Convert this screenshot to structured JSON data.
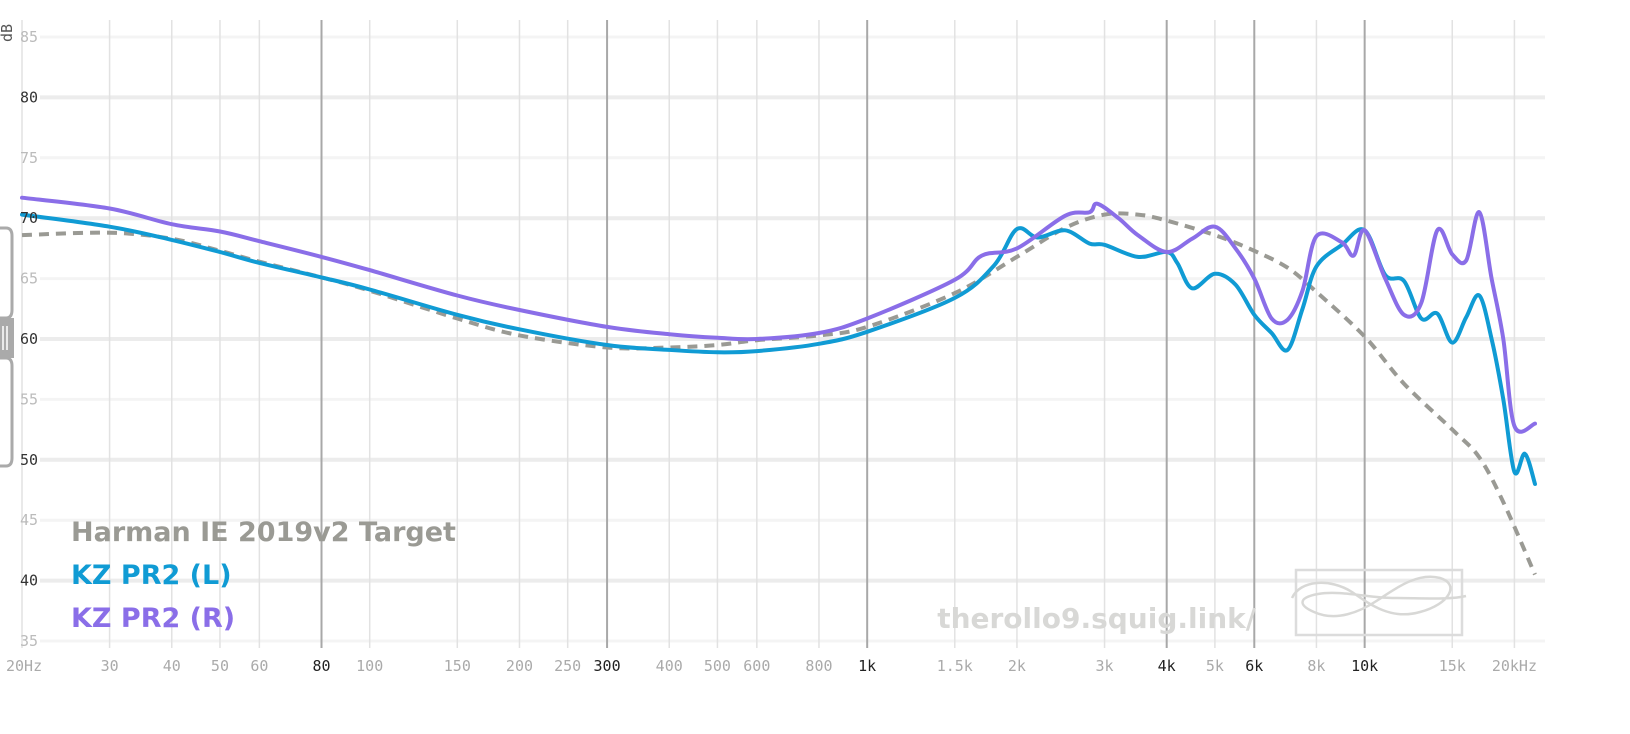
{
  "chart_data": {
    "type": "line",
    "title": "",
    "ylabel": "dB",
    "x_scale": "log",
    "xlim": [
      20,
      22000
    ],
    "ylim": [
      35,
      85
    ],
    "y_ticks": [
      {
        "value": 85,
        "label": "85",
        "major": false
      },
      {
        "value": 80,
        "label": "80",
        "major": true
      },
      {
        "value": 75,
        "label": "75",
        "major": false
      },
      {
        "value": 70,
        "label": "70",
        "major": true
      },
      {
        "value": 65,
        "label": "65",
        "major": false
      },
      {
        "value": 60,
        "label": "60",
        "major": true
      },
      {
        "value": 55,
        "label": "55",
        "major": false
      },
      {
        "value": 50,
        "label": "50",
        "major": true
      },
      {
        "value": 45,
        "label": "45",
        "major": false
      },
      {
        "value": 40,
        "label": "40",
        "major": true
      },
      {
        "value": 35,
        "label": "35",
        "major": false
      }
    ],
    "x_ticks": [
      {
        "value": 20,
        "label": "20Hz",
        "major": false
      },
      {
        "value": 30,
        "label": "30",
        "major": false
      },
      {
        "value": 40,
        "label": "40",
        "major": false
      },
      {
        "value": 50,
        "label": "50",
        "major": false
      },
      {
        "value": 60,
        "label": "60",
        "major": false
      },
      {
        "value": 80,
        "label": "80",
        "major": true
      },
      {
        "value": 100,
        "label": "100",
        "major": false
      },
      {
        "value": 150,
        "label": "150",
        "major": false
      },
      {
        "value": 200,
        "label": "200",
        "major": false
      },
      {
        "value": 250,
        "label": "250",
        "major": false
      },
      {
        "value": 300,
        "label": "300",
        "major": true
      },
      {
        "value": 400,
        "label": "400",
        "major": false
      },
      {
        "value": 500,
        "label": "500",
        "major": false
      },
      {
        "value": 600,
        "label": "600",
        "major": false
      },
      {
        "value": 800,
        "label": "800",
        "major": false
      },
      {
        "value": 1000,
        "label": "1k",
        "major": true
      },
      {
        "value": 1500,
        "label": "1.5k",
        "major": false
      },
      {
        "value": 2000,
        "label": "2k",
        "major": false
      },
      {
        "value": 3000,
        "label": "3k",
        "major": false
      },
      {
        "value": 4000,
        "label": "4k",
        "major": true
      },
      {
        "value": 5000,
        "label": "5k",
        "major": false
      },
      {
        "value": 6000,
        "label": "6k",
        "major": true
      },
      {
        "value": 8000,
        "label": "8k",
        "major": false
      },
      {
        "value": 10000,
        "label": "10k",
        "major": true
      },
      {
        "value": 15000,
        "label": "15k",
        "major": false
      },
      {
        "value": 20000,
        "label": "20kHz",
        "major": false
      }
    ],
    "grid": true,
    "legend_position": "bottom-left",
    "series": [
      {
        "name": "Harman IE 2019v2 Target",
        "color": "#9a9a94",
        "style": "dashed",
        "points": [
          [
            20,
            68.6
          ],
          [
            30,
            68.8
          ],
          [
            40,
            68.3
          ],
          [
            50,
            67.3
          ],
          [
            60,
            66.4
          ],
          [
            80,
            65.1
          ],
          [
            100,
            64
          ],
          [
            150,
            61.7
          ],
          [
            200,
            60.3
          ],
          [
            300,
            59.3
          ],
          [
            400,
            59.3
          ],
          [
            500,
            59.5
          ],
          [
            600,
            59.9
          ],
          [
            800,
            60.3
          ],
          [
            1000,
            61
          ],
          [
            1500,
            63.8
          ],
          [
            2000,
            66.8
          ],
          [
            2500,
            69.2
          ],
          [
            3000,
            70.3
          ],
          [
            3500,
            70.3
          ],
          [
            4000,
            69.8
          ],
          [
            5000,
            68.6
          ],
          [
            6000,
            67.3
          ],
          [
            7000,
            65.9
          ],
          [
            8000,
            63.9
          ],
          [
            10000,
            60.2
          ],
          [
            12000,
            56.3
          ],
          [
            15000,
            52.5
          ],
          [
            17000,
            50.2
          ],
          [
            19000,
            46.5
          ],
          [
            22000,
            40.5
          ]
        ]
      },
      {
        "name": "KZ PR2 (L)",
        "color": "#109bd4",
        "style": "solid",
        "points": [
          [
            20,
            70.3
          ],
          [
            30,
            69.3
          ],
          [
            40,
            68.2
          ],
          [
            50,
            67.2
          ],
          [
            60,
            66.3
          ],
          [
            80,
            65.1
          ],
          [
            100,
            64.1
          ],
          [
            150,
            62
          ],
          [
            200,
            60.8
          ],
          [
            300,
            59.5
          ],
          [
            400,
            59.1
          ],
          [
            500,
            58.9
          ],
          [
            600,
            59
          ],
          [
            800,
            59.6
          ],
          [
            1000,
            60.6
          ],
          [
            1500,
            63.4
          ],
          [
            1800,
            66.1
          ],
          [
            2000,
            69.1
          ],
          [
            2200,
            68.4
          ],
          [
            2500,
            69
          ],
          [
            2800,
            67.9
          ],
          [
            3000,
            67.8
          ],
          [
            3500,
            66.8
          ],
          [
            4000,
            67.2
          ],
          [
            4200,
            66.3
          ],
          [
            4500,
            64.2
          ],
          [
            5000,
            65.4
          ],
          [
            5500,
            64.5
          ],
          [
            6000,
            62
          ],
          [
            6500,
            60.5
          ],
          [
            7000,
            59.1
          ],
          [
            7500,
            62.5
          ],
          [
            8000,
            66
          ],
          [
            9000,
            67.8
          ],
          [
            10000,
            69
          ],
          [
            11000,
            65.3
          ],
          [
            12000,
            64.8
          ],
          [
            13000,
            61.7
          ],
          [
            14000,
            62.1
          ],
          [
            15000,
            59.7
          ],
          [
            16000,
            61.8
          ],
          [
            17000,
            63.6
          ],
          [
            18000,
            60
          ],
          [
            19000,
            55
          ],
          [
            20000,
            49
          ],
          [
            21000,
            50.5
          ],
          [
            22000,
            48
          ]
        ]
      },
      {
        "name": "KZ PR2 (R)",
        "color": "#8a6ee8",
        "style": "solid",
        "points": [
          [
            20,
            71.7
          ],
          [
            30,
            70.8
          ],
          [
            40,
            69.5
          ],
          [
            50,
            68.9
          ],
          [
            60,
            68.1
          ],
          [
            80,
            66.8
          ],
          [
            100,
            65.7
          ],
          [
            150,
            63.6
          ],
          [
            200,
            62.4
          ],
          [
            300,
            61
          ],
          [
            400,
            60.4
          ],
          [
            500,
            60.1
          ],
          [
            600,
            60
          ],
          [
            800,
            60.5
          ],
          [
            1000,
            61.7
          ],
          [
            1500,
            64.9
          ],
          [
            1700,
            66.9
          ],
          [
            2000,
            67.5
          ],
          [
            2500,
            70.2
          ],
          [
            2800,
            70.5
          ],
          [
            2900,
            71.2
          ],
          [
            3200,
            70
          ],
          [
            3500,
            68.6
          ],
          [
            4000,
            67.2
          ],
          [
            4500,
            68.3
          ],
          [
            5000,
            69.3
          ],
          [
            5500,
            67.5
          ],
          [
            6000,
            65
          ],
          [
            6500,
            61.7
          ],
          [
            7000,
            61.6
          ],
          [
            7500,
            64
          ],
          [
            8000,
            68.5
          ],
          [
            9000,
            68
          ],
          [
            9500,
            66.9
          ],
          [
            10000,
            69
          ],
          [
            11000,
            65
          ],
          [
            12000,
            62
          ],
          [
            13000,
            63
          ],
          [
            14000,
            69
          ],
          [
            15000,
            67
          ],
          [
            16000,
            66.5
          ],
          [
            17000,
            70.5
          ],
          [
            18000,
            65
          ],
          [
            19000,
            60
          ],
          [
            20000,
            52.8
          ],
          [
            22000,
            53
          ]
        ]
      }
    ],
    "watermark": "therollo9.squig.link/"
  }
}
